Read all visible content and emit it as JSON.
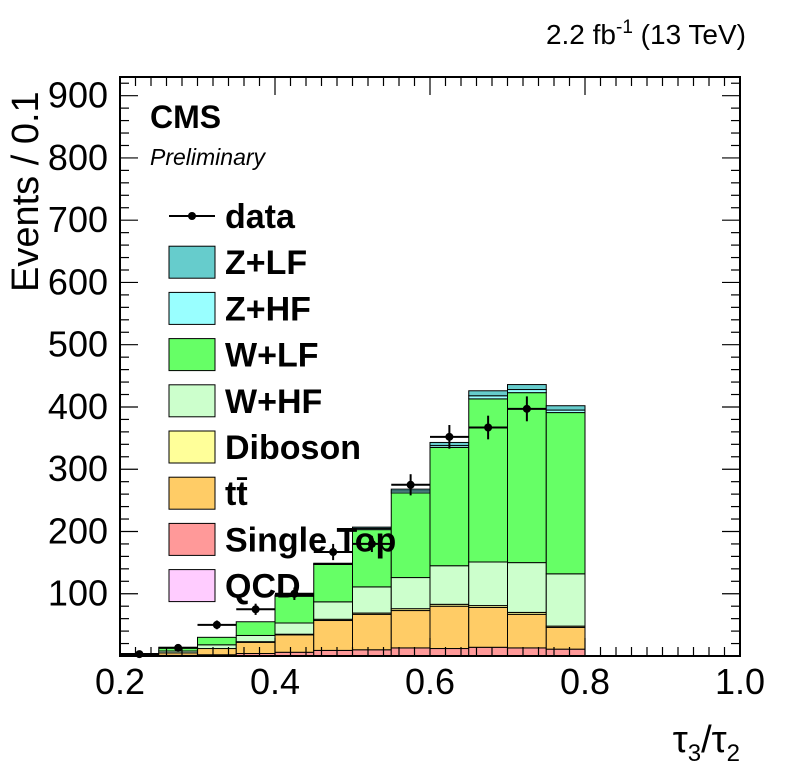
{
  "header": {
    "lumi_value": "2.2 fb",
    "lumi_exp": "-1",
    "lumi_energy": " (13 TeV)"
  },
  "labels": {
    "cms": "CMS",
    "preliminary": "Preliminary"
  },
  "chart_data": {
    "type": "bar",
    "stacked": true,
    "xlabel": "τ3/τ2",
    "ylabel": "Events / 0.1",
    "xlim": [
      0.2,
      1.0
    ],
    "ylim": [
      0,
      930
    ],
    "xticks": [
      "0.2",
      "0.4",
      "0.6",
      "0.8",
      "1.0"
    ],
    "yticks": [
      "100",
      "200",
      "300",
      "400",
      "500",
      "600",
      "700",
      "800",
      "900"
    ],
    "grid": false,
    "legend_position": "top-left",
    "bins": [
      0.225,
      0.275,
      0.325,
      0.375,
      0.425,
      0.475,
      0.525,
      0.575,
      0.625,
      0.675,
      0.725,
      0.775
    ],
    "bin_width": 0.05,
    "series": [
      {
        "name": "QCD",
        "color": "#ffccff",
        "values": [
          0,
          0,
          0,
          0,
          0,
          0,
          0,
          0,
          0,
          0,
          0,
          0
        ]
      },
      {
        "name": "Single Top",
        "color": "#ff9999",
        "values": [
          0,
          1,
          2,
          4,
          6,
          9,
          10,
          13,
          12,
          14,
          13,
          11
        ]
      },
      {
        "name": "tt̄",
        "color": "#ffcc66",
        "values": [
          1,
          4,
          10,
          18,
          28,
          48,
          57,
          60,
          68,
          64,
          54,
          35
        ]
      },
      {
        "name": "Diboson",
        "color": "#ffff99",
        "values": [
          0,
          0,
          0,
          1,
          1,
          2,
          2,
          3,
          3,
          3,
          3,
          2
        ]
      },
      {
        "name": "W+HF",
        "color": "#ccffcc",
        "values": [
          1,
          3,
          6,
          10,
          18,
          28,
          42,
          50,
          62,
          70,
          80,
          84
        ]
      },
      {
        "name": "W+LF",
        "color": "#66ff66",
        "values": [
          2,
          6,
          12,
          22,
          43,
          60,
          92,
          136,
          190,
          262,
          273,
          259
        ]
      },
      {
        "name": "Z+HF",
        "color": "#99ffff",
        "values": [
          0,
          0,
          0,
          0,
          1,
          1,
          2,
          3,
          3,
          5,
          5,
          4
        ]
      },
      {
        "name": "Z+LF",
        "color": "#66cccc",
        "values": [
          0,
          0,
          0,
          0,
          1,
          1,
          2,
          3,
          5,
          8,
          8,
          7
        ]
      }
    ],
    "data": {
      "name": "data",
      "values": [
        3,
        13,
        50,
        75,
        100,
        167,
        180,
        275,
        352,
        367,
        397,
        0
      ],
      "errors": [
        2,
        4,
        7,
        9,
        10,
        13,
        13,
        17,
        19,
        19,
        20,
        0
      ]
    }
  }
}
